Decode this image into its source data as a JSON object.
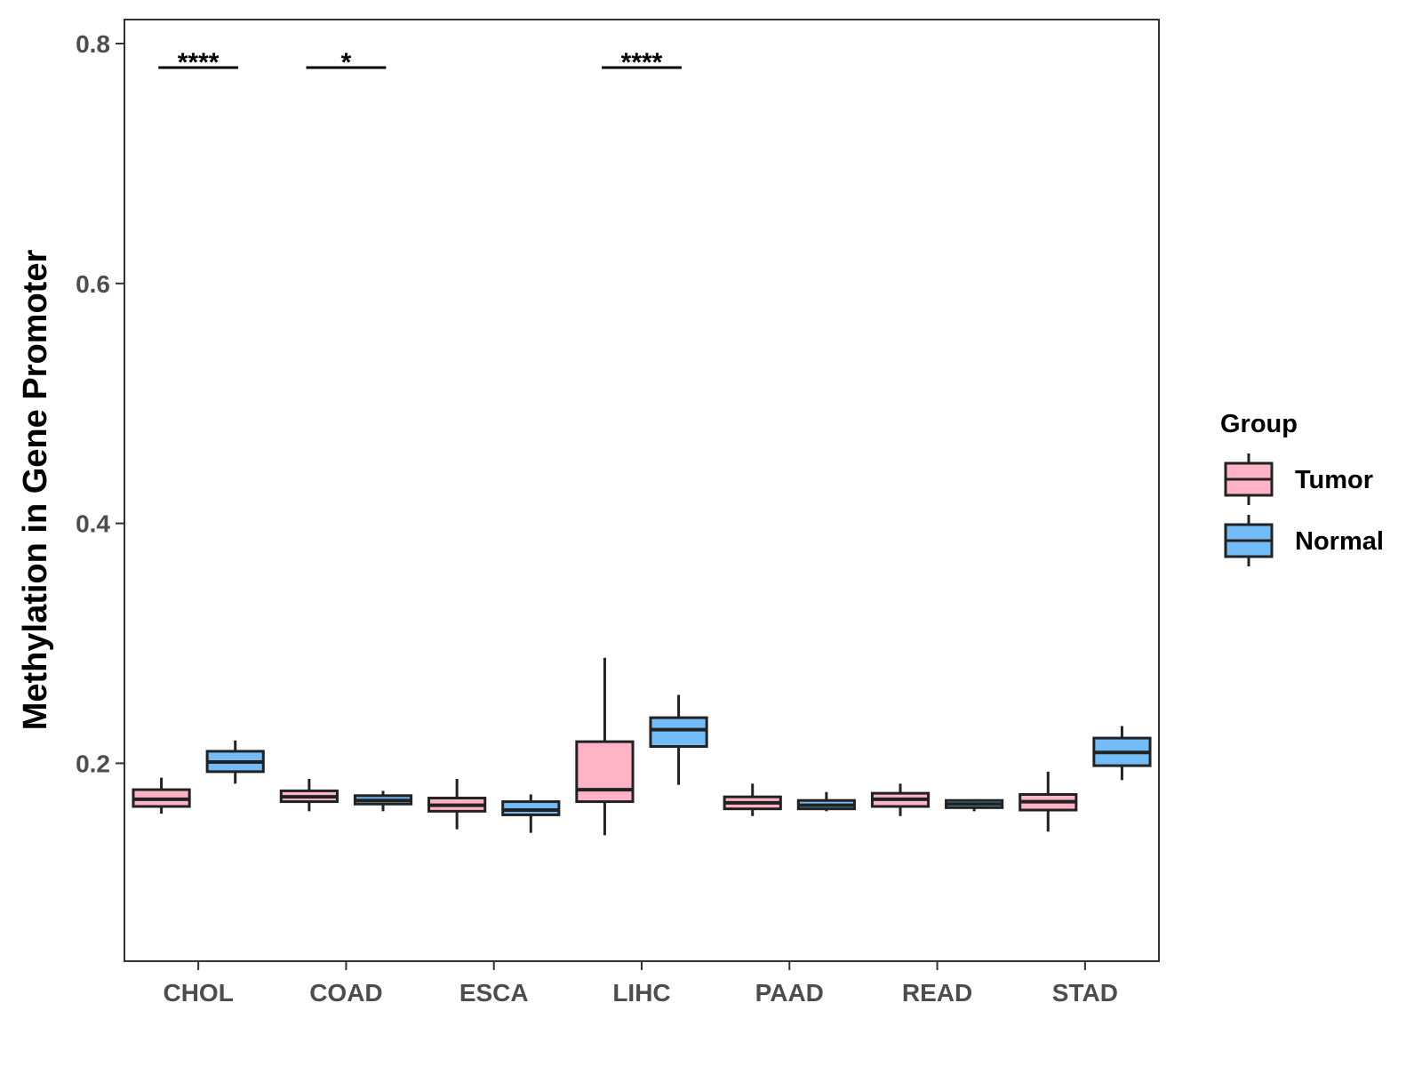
{
  "chart_data": {
    "type": "boxplot",
    "title": "",
    "xlabel": "",
    "ylabel": "Methylation in Gene Promoter",
    "ylim": [
      0.035,
      0.82
    ],
    "yticks": [
      0.2,
      0.4,
      0.6,
      0.8
    ],
    "ytick_labels": [
      "0.2",
      "0.4",
      "0.6",
      "0.8"
    ],
    "categories": [
      "CHOL",
      "COAD",
      "ESCA",
      "LIHC",
      "PAAD",
      "READ",
      "STAD"
    ],
    "legend": {
      "title": "Group",
      "position": "right",
      "entries": [
        {
          "name": "Tumor",
          "color": "#FFB3C6"
        },
        {
          "name": "Normal",
          "color": "#74BCF7"
        }
      ]
    },
    "series": [
      {
        "name": "Tumor",
        "color": "#FFB3C6",
        "boxes": [
          {
            "category": "CHOL",
            "min": 0.158,
            "q1": 0.164,
            "median": 0.17,
            "q3": 0.178,
            "max": 0.188
          },
          {
            "category": "COAD",
            "min": 0.16,
            "q1": 0.168,
            "median": 0.172,
            "q3": 0.177,
            "max": 0.187
          },
          {
            "category": "ESCA",
            "min": 0.145,
            "q1": 0.16,
            "median": 0.165,
            "q3": 0.171,
            "max": 0.187
          },
          {
            "category": "LIHC",
            "min": 0.14,
            "q1": 0.168,
            "median": 0.178,
            "q3": 0.218,
            "max": 0.288
          },
          {
            "category": "PAAD",
            "min": 0.156,
            "q1": 0.162,
            "median": 0.167,
            "q3": 0.172,
            "max": 0.183
          },
          {
            "category": "READ",
            "min": 0.156,
            "q1": 0.164,
            "median": 0.17,
            "q3": 0.175,
            "max": 0.183
          },
          {
            "category": "STAD",
            "min": 0.143,
            "q1": 0.161,
            "median": 0.168,
            "q3": 0.174,
            "max": 0.193
          }
        ]
      },
      {
        "name": "Normal",
        "color": "#74BCF7",
        "boxes": [
          {
            "category": "CHOL",
            "min": 0.183,
            "q1": 0.193,
            "median": 0.201,
            "q3": 0.21,
            "max": 0.219
          },
          {
            "category": "COAD",
            "min": 0.16,
            "q1": 0.166,
            "median": 0.169,
            "q3": 0.173,
            "max": 0.177
          },
          {
            "category": "ESCA",
            "min": 0.142,
            "q1": 0.157,
            "median": 0.161,
            "q3": 0.168,
            "max": 0.174
          },
          {
            "category": "LIHC",
            "min": 0.182,
            "q1": 0.214,
            "median": 0.228,
            "q3": 0.238,
            "max": 0.257
          },
          {
            "category": "PAAD",
            "min": 0.16,
            "q1": 0.162,
            "median": 0.165,
            "q3": 0.169,
            "max": 0.176
          },
          {
            "category": "READ",
            "min": 0.16,
            "q1": 0.163,
            "median": 0.166,
            "q3": 0.169,
            "max": 0.17
          },
          {
            "category": "STAD",
            "min": 0.186,
            "q1": 0.198,
            "median": 0.209,
            "q3": 0.221,
            "max": 0.231
          }
        ]
      }
    ],
    "annotations": [
      {
        "category": "CHOL",
        "label": "****",
        "y": 0.78
      },
      {
        "category": "COAD",
        "label": "*",
        "y": 0.78
      },
      {
        "category": "LIHC",
        "label": "****",
        "y": 0.78
      }
    ]
  }
}
